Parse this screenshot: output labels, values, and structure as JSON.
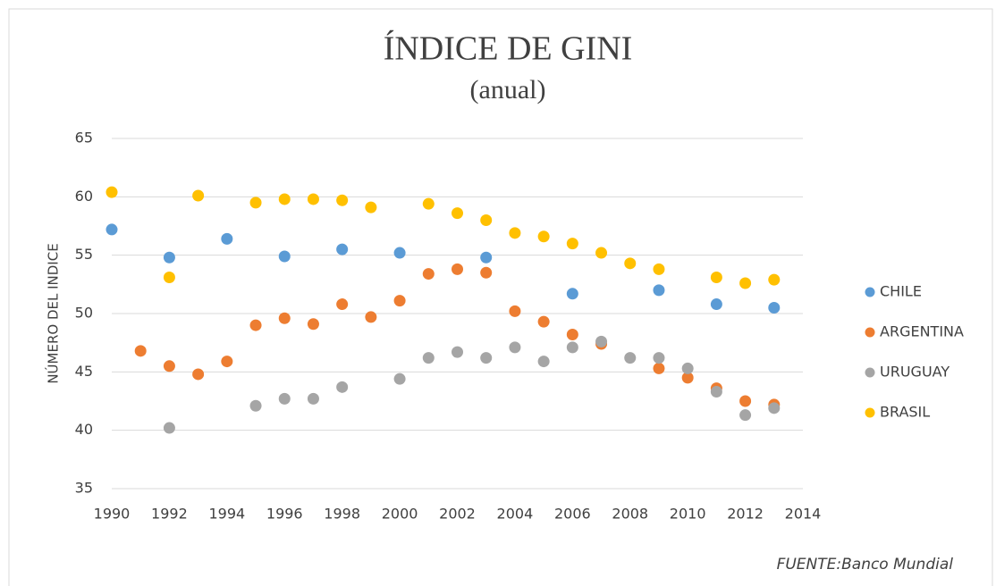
{
  "chart_data": {
    "type": "scatter",
    "title": "ÍNDICE  DE GINI",
    "subtitle": "(anual)",
    "y_label": "NÚMERO DEL INDICE",
    "source": "FUENTE:Banco  Mundial",
    "xlim": [
      1990,
      2014
    ],
    "xticks": [
      1990,
      1992,
      1994,
      1996,
      1998,
      2000,
      2002,
      2004,
      2006,
      2008,
      2010,
      2012,
      2014
    ],
    "ylim": [
      35,
      65
    ],
    "yticks": [
      35,
      40,
      45,
      50,
      55,
      60,
      65
    ],
    "grid": true,
    "legend": "right",
    "series": [
      {
        "name": "CHILE",
        "color": "#5b9bd5",
        "x": [
          1990,
          1992,
          1994,
          1996,
          1998,
          2000,
          2003,
          2006,
          2009,
          2011,
          2013
        ],
        "values": [
          57.2,
          54.8,
          56.4,
          54.9,
          55.5,
          55.2,
          54.8,
          51.7,
          52.0,
          50.8,
          50.5
        ]
      },
      {
        "name": "ARGENTINA",
        "color": "#ed7d31",
        "x": [
          1991,
          1992,
          1993,
          1994,
          1995,
          1996,
          1997,
          1998,
          1999,
          2000,
          2001,
          2002,
          2003,
          2004,
          2005,
          2006,
          2007,
          2009,
          2010,
          2011,
          2012,
          2013
        ],
        "values": [
          46.8,
          45.5,
          44.8,
          45.9,
          49.0,
          49.6,
          49.1,
          50.8,
          49.7,
          51.1,
          53.4,
          53.8,
          53.5,
          50.2,
          49.3,
          48.2,
          47.4,
          45.3,
          44.5,
          43.6,
          42.5,
          42.2
        ]
      },
      {
        "name": "URUGUAY",
        "color": "#a5a5a5",
        "x": [
          1992,
          1995,
          1996,
          1997,
          1998,
          2000,
          2001,
          2002,
          2003,
          2004,
          2005,
          2006,
          2007,
          2008,
          2009,
          2010,
          2011,
          2012,
          2013
        ],
        "values": [
          40.2,
          42.1,
          42.7,
          42.7,
          43.7,
          44.4,
          46.2,
          46.7,
          46.2,
          47.1,
          45.9,
          47.1,
          47.6,
          46.2,
          46.2,
          45.3,
          43.3,
          41.3,
          41.9
        ]
      },
      {
        "name": "BRASIL",
        "color": "#ffc000",
        "x": [
          1990,
          1992,
          1993,
          1995,
          1996,
          1997,
          1998,
          1999,
          2001,
          2002,
          2003,
          2004,
          2005,
          2006,
          2007,
          2008,
          2009,
          2011,
          2012,
          2013
        ],
        "values": [
          60.4,
          53.1,
          60.1,
          59.5,
          59.8,
          59.8,
          59.7,
          59.1,
          59.4,
          58.6,
          58.0,
          56.9,
          56.6,
          56.0,
          55.2,
          54.3,
          53.8,
          53.1,
          52.6,
          52.9
        ]
      }
    ]
  }
}
